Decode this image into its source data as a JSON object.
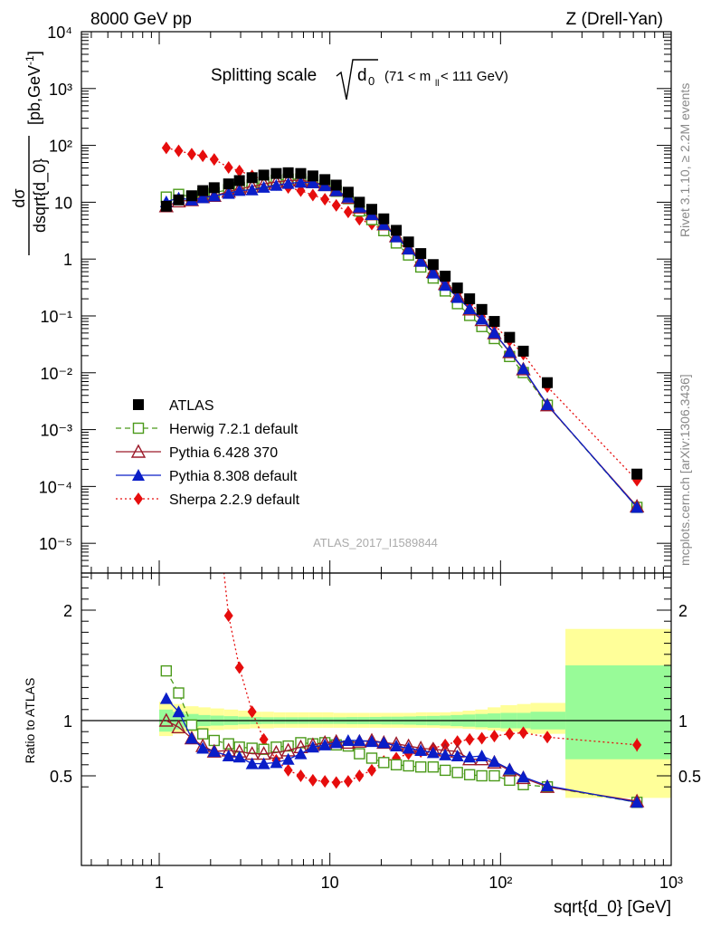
{
  "header": {
    "left": "8000 GeV pp",
    "right": "Z (Drell-Yan)"
  },
  "side_labels": {
    "rivet": "Rivet 3.1.10, ≥ 2.2M events",
    "mcplots": "mcplots.cern.ch [arXiv:1306.3436]"
  },
  "chart_data": [
    {
      "type": "scatter",
      "panel": "main",
      "title": "Splitting scale √d0 (71 < mll < 111 GeV)",
      "title_main": "Splitting scale",
      "title_sub": "0",
      "title_range": "(71 < m",
      "title_range_sub": "ll",
      "title_range_end": " < 111 GeV)",
      "title_sqrt_d": "d",
      "ylabel_num": "dσ",
      "ylabel_den": "dsqrt{d_0}",
      "ylabel_units": "[pb,GeV",
      "ylabel_units_sup": "-1",
      "ylabel_units_end": "]",
      "xscale": "log",
      "yscale": "log",
      "xlim": [
        0.35,
        1000
      ],
      "ylim": [
        3e-06,
        10000
      ],
      "y_tick_labels": [
        "10⁴",
        "10³",
        "10²",
        "10",
        "1",
        "10⁻¹",
        "10⁻²",
        "10⁻³",
        "10⁻⁴",
        "10⁻⁵"
      ],
      "watermark": "ATLAS_2017_I1589844",
      "legend_position": "bottom-left",
      "x": [
        1.1,
        1.3,
        1.55,
        1.8,
        2.1,
        2.55,
        2.95,
        3.5,
        4.1,
        4.85,
        5.7,
        6.75,
        7.95,
        9.35,
        10.9,
        12.8,
        14.9,
        17.6,
        20.7,
        24.5,
        28.9,
        34.1,
        40.3,
        47.4,
        55.9,
        65.9,
        77.7,
        92,
        113,
        136,
        188,
        630
      ],
      "series": [
        {
          "name": "ATLAS",
          "color": "#000000",
          "marker": "square-filled",
          "values": [
            8.5,
            11,
            13,
            16,
            18,
            21,
            24,
            27,
            30,
            32,
            33,
            32,
            29,
            25,
            20,
            15,
            10,
            7.5,
            5.1,
            3.2,
            2.0,
            1.25,
            0.8,
            0.5,
            0.31,
            0.2,
            0.13,
            0.08,
            0.042,
            0.024,
            0.0067,
            0.000165
          ]
        },
        {
          "name": "Herwig 7.2.1 default",
          "color": "#4b9a1a",
          "marker": "square-open",
          "line": "dashed",
          "ratio": [
            1.45,
            1.25,
            0.96,
            0.88,
            0.82,
            0.79,
            0.76,
            0.75,
            0.74,
            0.76,
            0.77,
            0.8,
            0.79,
            0.8,
            0.78,
            0.77,
            0.7,
            0.66,
            0.62,
            0.6,
            0.59,
            0.58,
            0.58,
            0.55,
            0.53,
            0.51,
            0.5,
            0.5,
            0.46,
            0.42,
            0.4,
            0.26
          ]
        },
        {
          "name": "Pythia 6.428 370",
          "color": "#9c1a2a",
          "marker": "triangle-open",
          "line": "solid",
          "ratio": [
            1.0,
            0.94,
            0.84,
            0.77,
            0.72,
            0.73,
            0.72,
            0.7,
            0.7,
            0.71,
            0.73,
            0.76,
            0.78,
            0.8,
            0.81,
            0.8,
            0.81,
            0.82,
            0.8,
            0.79,
            0.77,
            0.75,
            0.74,
            0.73,
            0.72,
            0.65,
            0.65,
            0.62,
            0.55,
            0.48,
            0.4,
            0.27
          ]
        },
        {
          "name": "Pythia 8.308 default",
          "color": "#0a1ec8",
          "marker": "triangle-filled",
          "line": "solid",
          "ratio": [
            1.2,
            1.08,
            0.84,
            0.75,
            0.72,
            0.68,
            0.67,
            0.61,
            0.61,
            0.62,
            0.65,
            0.7,
            0.76,
            0.78,
            0.8,
            0.82,
            0.82,
            0.81,
            0.8,
            0.77,
            0.75,
            0.73,
            0.71,
            0.69,
            0.68,
            0.67,
            0.68,
            0.63,
            0.56,
            0.49,
            0.41,
            0.26
          ]
        },
        {
          "name": "Sherpa 2.2.9 default",
          "color": "#e60d0d",
          "marker": "diamond-filled",
          "line": "dotted",
          "ratio": [
            10.6,
            7.3,
            5.4,
            4.1,
            3.15,
            1.95,
            1.48,
            1.08,
            0.83,
            0.64,
            0.55,
            0.5,
            0.46,
            0.45,
            0.44,
            0.45,
            0.5,
            0.55,
            0.63,
            0.66,
            0.7,
            0.72,
            0.75,
            0.78,
            0.81,
            0.83,
            0.84,
            0.86,
            0.88,
            0.89,
            0.85,
            0.78
          ]
        }
      ]
    },
    {
      "type": "scatter",
      "panel": "ratio",
      "ylabel": "Ratio to ATLAS",
      "xlabel": "sqrt{d_0} [GeV]",
      "xscale": "log",
      "xlim": [
        0.35,
        1000
      ],
      "ylim": [
        0.35,
        2.4
      ],
      "y_ticks": [
        "0.5",
        "1",
        "2"
      ],
      "x_tick_labels": [
        "1",
        "10",
        "10²",
        "10³"
      ],
      "band_edges": [
        1.0,
        1.2,
        1.4,
        1.7,
        2.0,
        2.4,
        2.9,
        3.4,
        4.0,
        4.7,
        5.5,
        6.5,
        7.5,
        9.0,
        10.5,
        12.5,
        14.5,
        17,
        20,
        23,
        27,
        32,
        37,
        44,
        51,
        60,
        71,
        84,
        100,
        125,
        150,
        240,
        1000
      ],
      "band_stat_up": [
        0.1,
        0.08,
        0.06,
        0.05,
        0.045,
        0.04,
        0.035,
        0.032,
        0.03,
        0.03,
        0.03,
        0.03,
        0.03,
        0.03,
        0.03,
        0.032,
        0.032,
        0.033,
        0.035,
        0.035,
        0.037,
        0.04,
        0.042,
        0.045,
        0.05,
        0.055,
        0.06,
        0.065,
        0.07,
        0.07,
        0.08,
        0.5
      ],
      "band_syst_up": [
        0.17,
        0.15,
        0.13,
        0.12,
        0.11,
        0.1,
        0.09,
        0.08,
        0.08,
        0.075,
        0.075,
        0.075,
        0.075,
        0.075,
        0.07,
        0.07,
        0.07,
        0.07,
        0.07,
        0.07,
        0.07,
        0.075,
        0.075,
        0.075,
        0.08,
        0.09,
        0.1,
        0.12,
        0.14,
        0.15,
        0.16,
        0.83
      ],
      "band_stat_down": [
        0.1,
        0.08,
        0.06,
        0.05,
        0.045,
        0.04,
        0.035,
        0.032,
        0.03,
        0.03,
        0.03,
        0.03,
        0.03,
        0.03,
        0.03,
        0.032,
        0.032,
        0.033,
        0.035,
        0.035,
        0.037,
        0.04,
        0.042,
        0.045,
        0.05,
        0.055,
        0.06,
        0.065,
        0.07,
        0.07,
        0.08,
        0.35
      ],
      "band_syst_down": [
        0.14,
        0.12,
        0.1,
        0.09,
        0.085,
        0.08,
        0.075,
        0.07,
        0.07,
        0.065,
        0.065,
        0.065,
        0.065,
        0.065,
        0.065,
        0.065,
        0.065,
        0.065,
        0.065,
        0.065,
        0.065,
        0.065,
        0.065,
        0.07,
        0.07,
        0.075,
        0.08,
        0.09,
        0.1,
        0.11,
        0.12,
        0.7
      ],
      "band_colors": {
        "stat": "#98fb98",
        "syst": "#ffff99"
      },
      "sherpa_last_error": 0.06
    }
  ]
}
